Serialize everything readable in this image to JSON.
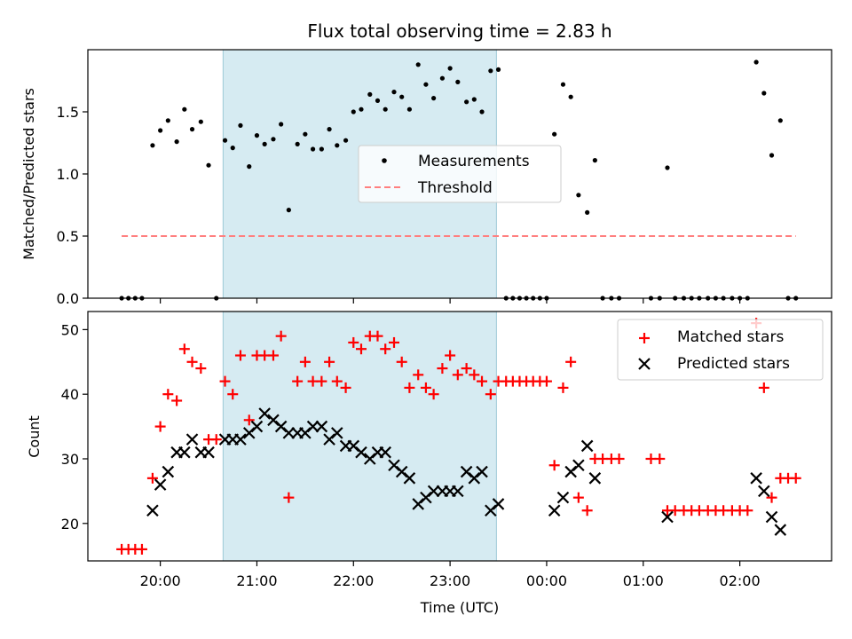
{
  "title": "Flux total observing time = 2.83 h",
  "chart_data": [
    {
      "type": "scatter",
      "panel": "top",
      "ylabel": "Matched/Predicted stars",
      "ylim": [
        0,
        2.0
      ],
      "yticks": [
        0.0,
        0.5,
        1.0,
        1.5
      ],
      "ytick_labels": [
        "0.0",
        "0.5",
        "1.0",
        "1.5"
      ],
      "xlim_hours": [
        19.25,
        26.95
      ],
      "highlight_hours": [
        20.65,
        23.48
      ],
      "highlight_color": "#add8e6",
      "legend": {
        "placement": "center",
        "entries": [
          "Measurements",
          "Threshold"
        ]
      },
      "series": [
        {
          "name": "Measurements",
          "marker": "dot",
          "color": "#000000",
          "points": [
            [
              19.6,
              0
            ],
            [
              19.67,
              0
            ],
            [
              19.74,
              0
            ],
            [
              19.81,
              0
            ],
            [
              19.92,
              1.23
            ],
            [
              20.0,
              1.35
            ],
            [
              20.08,
              1.43
            ],
            [
              20.17,
              1.26
            ],
            [
              20.25,
              1.52
            ],
            [
              20.33,
              1.36
            ],
            [
              20.42,
              1.42
            ],
            [
              20.5,
              1.07
            ],
            [
              20.58,
              0
            ],
            [
              20.67,
              1.27
            ],
            [
              20.75,
              1.21
            ],
            [
              20.83,
              1.39
            ],
            [
              20.92,
              1.06
            ],
            [
              21.0,
              1.31
            ],
            [
              21.08,
              1.24
            ],
            [
              21.17,
              1.28
            ],
            [
              21.25,
              1.4
            ],
            [
              21.33,
              0.71
            ],
            [
              21.42,
              1.24
            ],
            [
              21.5,
              1.32
            ],
            [
              21.58,
              1.2
            ],
            [
              21.67,
              1.2
            ],
            [
              21.75,
              1.36
            ],
            [
              21.83,
              1.23
            ],
            [
              21.92,
              1.27
            ],
            [
              22.0,
              1.5
            ],
            [
              22.08,
              1.52
            ],
            [
              22.17,
              1.64
            ],
            [
              22.25,
              1.59
            ],
            [
              22.33,
              1.52
            ],
            [
              22.42,
              1.66
            ],
            [
              22.5,
              1.62
            ],
            [
              22.58,
              1.52
            ],
            [
              22.67,
              1.88
            ],
            [
              22.75,
              1.72
            ],
            [
              22.83,
              1.61
            ],
            [
              22.92,
              1.77
            ],
            [
              23.0,
              1.85
            ],
            [
              23.08,
              1.74
            ],
            [
              23.17,
              1.58
            ],
            [
              23.25,
              1.6
            ],
            [
              23.33,
              1.5
            ],
            [
              23.42,
              1.83
            ],
            [
              23.5,
              1.84
            ],
            [
              23.58,
              0
            ],
            [
              23.65,
              0
            ],
            [
              23.72,
              0
            ],
            [
              23.79,
              0
            ],
            [
              23.86,
              0
            ],
            [
              23.93,
              0
            ],
            [
              24.0,
              0
            ],
            [
              24.08,
              1.32
            ],
            [
              24.17,
              1.72
            ],
            [
              24.25,
              1.62
            ],
            [
              24.33,
              0.83
            ],
            [
              24.42,
              0.69
            ],
            [
              24.5,
              1.11
            ],
            [
              24.58,
              0
            ],
            [
              24.67,
              0
            ],
            [
              24.75,
              0
            ],
            [
              25.08,
              0
            ],
            [
              25.17,
              0
            ],
            [
              25.25,
              1.05
            ],
            [
              25.33,
              0
            ],
            [
              25.42,
              0
            ],
            [
              25.5,
              0
            ],
            [
              25.58,
              0
            ],
            [
              25.67,
              0
            ],
            [
              25.75,
              0
            ],
            [
              25.83,
              0
            ],
            [
              25.92,
              0
            ],
            [
              26.0,
              0
            ],
            [
              26.08,
              0
            ],
            [
              26.17,
              1.9
            ],
            [
              26.25,
              1.65
            ],
            [
              26.33,
              1.15
            ],
            [
              26.42,
              1.43
            ],
            [
              26.5,
              0
            ],
            [
              26.58,
              0
            ]
          ]
        },
        {
          "name": "Threshold",
          "style": "dashed",
          "color": "#ff7f7f",
          "points": [
            [
              19.6,
              0.5
            ],
            [
              26.58,
              0.5
            ]
          ]
        }
      ]
    },
    {
      "type": "scatter",
      "panel": "bottom",
      "ylabel": "Count",
      "xlabel": "Time (UTC)",
      "ylim": [
        14.2,
        52.8
      ],
      "yticks": [
        20,
        30,
        40,
        50
      ],
      "ytick_labels": [
        "20",
        "30",
        "40",
        "50"
      ],
      "xlim_hours": [
        19.25,
        26.95
      ],
      "xticks_hours": [
        20,
        21,
        22,
        23,
        24,
        25,
        26
      ],
      "xtick_labels": [
        "20:00",
        "21:00",
        "22:00",
        "23:00",
        "00:00",
        "01:00",
        "02:00"
      ],
      "highlight_hours": [
        20.65,
        23.48
      ],
      "highlight_color": "#add8e6",
      "legend": {
        "placement": "top-right",
        "entries": [
          "Matched stars",
          "Predicted stars"
        ]
      },
      "series": [
        {
          "name": "Matched stars",
          "marker": "plus",
          "color": "#ff0000",
          "points": [
            [
              19.6,
              16
            ],
            [
              19.67,
              16
            ],
            [
              19.74,
              16
            ],
            [
              19.81,
              16
            ],
            [
              19.92,
              27
            ],
            [
              20.0,
              35
            ],
            [
              20.08,
              40
            ],
            [
              20.17,
              39
            ],
            [
              20.25,
              47
            ],
            [
              20.33,
              45
            ],
            [
              20.42,
              44
            ],
            [
              20.5,
              33
            ],
            [
              20.58,
              33
            ],
            [
              20.67,
              42
            ],
            [
              20.75,
              40
            ],
            [
              20.83,
              46
            ],
            [
              20.92,
              36
            ],
            [
              21.0,
              46
            ],
            [
              21.08,
              46
            ],
            [
              21.17,
              46
            ],
            [
              21.25,
              49
            ],
            [
              21.33,
              24
            ],
            [
              21.42,
              42
            ],
            [
              21.5,
              45
            ],
            [
              21.58,
              42
            ],
            [
              21.67,
              42
            ],
            [
              21.75,
              45
            ],
            [
              21.83,
              42
            ],
            [
              21.92,
              41
            ],
            [
              22.0,
              48
            ],
            [
              22.08,
              47
            ],
            [
              22.17,
              49
            ],
            [
              22.25,
              49
            ],
            [
              22.33,
              47
            ],
            [
              22.42,
              48
            ],
            [
              22.5,
              45
            ],
            [
              22.58,
              41
            ],
            [
              22.67,
              43
            ],
            [
              22.75,
              41
            ],
            [
              22.83,
              40
            ],
            [
              22.92,
              44
            ],
            [
              23.0,
              46
            ],
            [
              23.08,
              43
            ],
            [
              23.17,
              44
            ],
            [
              23.25,
              43
            ],
            [
              23.33,
              42
            ],
            [
              23.42,
              40
            ],
            [
              23.5,
              42
            ],
            [
              23.58,
              42
            ],
            [
              23.65,
              42
            ],
            [
              23.72,
              42
            ],
            [
              23.79,
              42
            ],
            [
              23.86,
              42
            ],
            [
              23.93,
              42
            ],
            [
              24.0,
              42
            ],
            [
              24.08,
              29
            ],
            [
              24.17,
              41
            ],
            [
              24.25,
              45
            ],
            [
              24.33,
              24
            ],
            [
              24.42,
              22
            ],
            [
              24.5,
              30
            ],
            [
              24.58,
              30
            ],
            [
              24.67,
              30
            ],
            [
              24.75,
              30
            ],
            [
              25.08,
              30
            ],
            [
              25.17,
              30
            ],
            [
              25.25,
              22
            ],
            [
              25.33,
              22
            ],
            [
              25.42,
              22
            ],
            [
              25.5,
              22
            ],
            [
              25.58,
              22
            ],
            [
              25.67,
              22
            ],
            [
              25.75,
              22
            ],
            [
              25.83,
              22
            ],
            [
              25.92,
              22
            ],
            [
              26.0,
              22
            ],
            [
              26.08,
              22
            ],
            [
              26.17,
              51
            ],
            [
              26.25,
              41
            ],
            [
              26.33,
              24
            ],
            [
              26.42,
              27
            ],
            [
              26.5,
              27
            ],
            [
              26.58,
              27
            ]
          ]
        },
        {
          "name": "Predicted stars",
          "marker": "x",
          "color": "#000000",
          "points": [
            [
              19.92,
              22
            ],
            [
              20.0,
              26
            ],
            [
              20.08,
              28
            ],
            [
              20.17,
              31
            ],
            [
              20.25,
              31
            ],
            [
              20.33,
              33
            ],
            [
              20.42,
              31
            ],
            [
              20.5,
              31
            ],
            [
              20.67,
              33
            ],
            [
              20.75,
              33
            ],
            [
              20.83,
              33
            ],
            [
              20.92,
              34
            ],
            [
              21.0,
              35
            ],
            [
              21.08,
              37
            ],
            [
              21.17,
              36
            ],
            [
              21.25,
              35
            ],
            [
              21.33,
              34
            ],
            [
              21.42,
              34
            ],
            [
              21.5,
              34
            ],
            [
              21.58,
              35
            ],
            [
              21.67,
              35
            ],
            [
              21.75,
              33
            ],
            [
              21.83,
              34
            ],
            [
              21.92,
              32
            ],
            [
              22.0,
              32
            ],
            [
              22.08,
              31
            ],
            [
              22.17,
              30
            ],
            [
              22.25,
              31
            ],
            [
              22.33,
              31
            ],
            [
              22.42,
              29
            ],
            [
              22.5,
              28
            ],
            [
              22.58,
              27
            ],
            [
              22.67,
              23
            ],
            [
              22.75,
              24
            ],
            [
              22.83,
              25
            ],
            [
              22.92,
              25
            ],
            [
              23.0,
              25
            ],
            [
              23.08,
              25
            ],
            [
              23.17,
              28
            ],
            [
              23.25,
              27
            ],
            [
              23.33,
              28
            ],
            [
              23.42,
              22
            ],
            [
              23.5,
              23
            ],
            [
              24.08,
              22
            ],
            [
              24.17,
              24
            ],
            [
              24.25,
              28
            ],
            [
              24.33,
              29
            ],
            [
              24.42,
              32
            ],
            [
              24.5,
              27
            ],
            [
              25.25,
              21
            ],
            [
              26.17,
              27
            ],
            [
              26.25,
              25
            ],
            [
              26.33,
              21
            ],
            [
              26.42,
              19
            ]
          ]
        }
      ]
    }
  ]
}
